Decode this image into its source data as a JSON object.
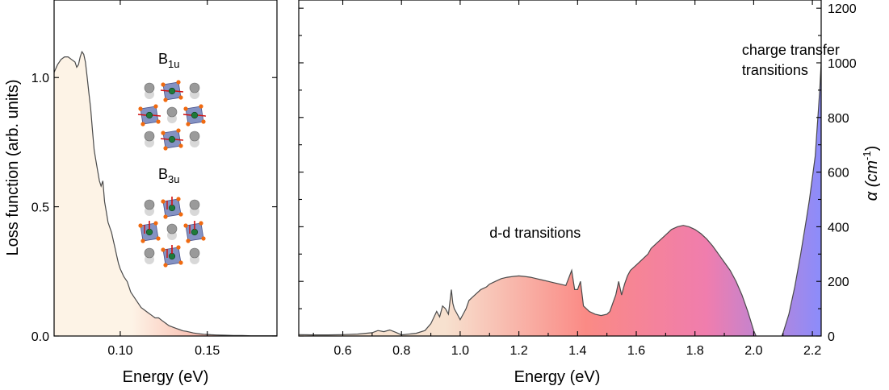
{
  "colors": {
    "left_fill_start": "#fdf3e6",
    "left_fill_end": "#f57d70",
    "right_fill_a": "#f7e1cf",
    "right_fill_b": "#fa8a85",
    "right_fill_c": "#f07dad",
    "right_fill_d": "#8b8cfb",
    "curve": "#4a4a4a",
    "octahedron": "#6e7fb8",
    "atom_gray": "#9a9a9a",
    "atom_green": "#1e7a3a",
    "atom_orange": "#f06a10",
    "arrow_red": "#d01010"
  },
  "chart_data": [
    {
      "type": "area",
      "xlabel": "Energy (eV)",
      "ylabel": "Loss function (arb. units)",
      "xlim": [
        0.062,
        0.19
      ],
      "ylim": [
        0,
        1.3
      ],
      "xticks": [
        {
          "v": 0.1,
          "label": "0.10"
        },
        {
          "v": 0.15,
          "label": "0.15"
        }
      ],
      "yticks": [
        {
          "v": 0.0,
          "label": "0.0"
        },
        {
          "v": 0.5,
          "label": "0.5"
        },
        {
          "v": 1.0,
          "label": "1.0"
        }
      ],
      "annotations": [
        {
          "label": "B",
          "sub": "1u"
        },
        {
          "label": "B",
          "sub": "3u"
        }
      ],
      "series": [
        {
          "x": [
            0.062,
            0.064,
            0.066,
            0.068,
            0.07,
            0.072,
            0.074,
            0.075,
            0.076,
            0.077,
            0.078,
            0.079,
            0.08,
            0.081,
            0.082,
            0.083,
            0.084,
            0.085,
            0.086,
            0.087,
            0.088,
            0.089,
            0.09,
            0.091,
            0.092,
            0.093,
            0.094,
            0.095,
            0.096,
            0.097,
            0.098,
            0.099,
            0.1,
            0.102,
            0.104,
            0.106,
            0.108,
            0.11,
            0.112,
            0.114,
            0.116,
            0.118,
            0.12,
            0.122,
            0.124,
            0.126,
            0.128,
            0.13,
            0.132,
            0.134,
            0.136,
            0.138,
            0.14,
            0.142,
            0.144,
            0.146,
            0.148,
            0.15,
            0.152,
            0.155,
            0.16,
            0.165,
            0.17,
            0.175,
            0.18,
            0.185,
            0.19
          ],
          "y": [
            1.02,
            1.05,
            1.07,
            1.08,
            1.08,
            1.07,
            1.06,
            1.04,
            1.05,
            1.08,
            1.1,
            1.09,
            1.06,
            1.0,
            0.94,
            0.88,
            0.8,
            0.72,
            0.68,
            0.64,
            0.6,
            0.58,
            0.6,
            0.52,
            0.48,
            0.44,
            0.42,
            0.4,
            0.37,
            0.34,
            0.31,
            0.28,
            0.26,
            0.23,
            0.21,
            0.17,
            0.15,
            0.13,
            0.11,
            0.1,
            0.09,
            0.08,
            0.07,
            0.07,
            0.06,
            0.05,
            0.04,
            0.035,
            0.03,
            0.025,
            0.02,
            0.018,
            0.015,
            0.012,
            0.01,
            0.008,
            0.007,
            0.006,
            0.005,
            0.004,
            0.003,
            0.002,
            0.002,
            0.001,
            0.001,
            0.001,
            0.001
          ]
        }
      ]
    },
    {
      "type": "area",
      "xlabel": "Energy (eV)",
      "ylabel": "α (cm⁻¹)",
      "ylabel_base": "α (cm",
      "ylabel_sup": "-1",
      "ylabel_close": ")",
      "xlim": [
        0.45,
        2.23
      ],
      "ylim": [
        0,
        1230
      ],
      "xticks": [
        {
          "v": 0.6,
          "label": "0.6"
        },
        {
          "v": 0.8,
          "label": "0.8"
        },
        {
          "v": 1.0,
          "label": "1.0"
        },
        {
          "v": 1.2,
          "label": "1.2"
        },
        {
          "v": 1.4,
          "label": "1.4"
        },
        {
          "v": 1.6,
          "label": "1.6"
        },
        {
          "v": 1.8,
          "label": "1.8"
        },
        {
          "v": 2.0,
          "label": "2.0"
        },
        {
          "v": 2.2,
          "label": "2.2"
        }
      ],
      "yticks": [
        {
          "v": 0,
          "label": "0"
        },
        {
          "v": 200,
          "label": "200"
        },
        {
          "v": 400,
          "label": "400"
        },
        {
          "v": 600,
          "label": "600"
        },
        {
          "v": 800,
          "label": "800"
        },
        {
          "v": 1000,
          "label": "1000"
        },
        {
          "v": 1200,
          "label": "1200"
        }
      ],
      "annotations": [
        {
          "label": "d-d transitions",
          "x": 1.1,
          "y": 360
        },
        {
          "label": "charge transfer",
          "x": 1.96,
          "y": 1030
        },
        {
          "label": "transitions",
          "x": 1.96,
          "y": 955
        }
      ],
      "series": [
        {
          "x": [
            0.45,
            0.5,
            0.55,
            0.6,
            0.65,
            0.7,
            0.72,
            0.74,
            0.76,
            0.78,
            0.8,
            0.85,
            0.88,
            0.9,
            0.92,
            0.93,
            0.94,
            0.95,
            0.96,
            0.97,
            0.975,
            0.98,
            0.99,
            1.0,
            1.01,
            1.02,
            1.03,
            1.05,
            1.07,
            1.09,
            1.1,
            1.12,
            1.14,
            1.16,
            1.18,
            1.2,
            1.22,
            1.24,
            1.26,
            1.28,
            1.3,
            1.32,
            1.34,
            1.36,
            1.38,
            1.39,
            1.4,
            1.41,
            1.42,
            1.44,
            1.46,
            1.48,
            1.5,
            1.51,
            1.52,
            1.53,
            1.54,
            1.55,
            1.56,
            1.57,
            1.58,
            1.6,
            1.62,
            1.64,
            1.65,
            1.66,
            1.67,
            1.68,
            1.7,
            1.72,
            1.74,
            1.76,
            1.78,
            1.8,
            1.82,
            1.84,
            1.86,
            1.88,
            1.9,
            1.92,
            1.94,
            1.96,
            1.98,
            2.0,
            2.02,
            2.04,
            2.06,
            2.08,
            2.1,
            2.12,
            2.14,
            2.16,
            2.18,
            2.19,
            2.2,
            2.21,
            2.215,
            2.22,
            2.225,
            2.23
          ],
          "y": [
            5,
            4,
            4,
            5,
            7,
            12,
            20,
            16,
            22,
            14,
            4,
            10,
            20,
            45,
            90,
            70,
            110,
            100,
            80,
            170,
            120,
            100,
            80,
            60,
            80,
            100,
            130,
            150,
            170,
            180,
            190,
            200,
            210,
            215,
            218,
            220,
            218,
            215,
            210,
            205,
            200,
            195,
            190,
            185,
            240,
            170,
            170,
            200,
            110,
            90,
            80,
            75,
            80,
            90,
            120,
            150,
            200,
            150,
            190,
            220,
            240,
            260,
            280,
            300,
            320,
            330,
            340,
            350,
            370,
            390,
            400,
            405,
            400,
            390,
            375,
            355,
            330,
            300,
            270,
            240,
            200,
            150,
            90,
            20,
            -30,
            -50,
            -60,
            -40,
            10,
            80,
            180,
            300,
            430,
            500,
            580,
            660,
            740,
            820,
            900,
            1000
          ]
        }
      ]
    }
  ]
}
